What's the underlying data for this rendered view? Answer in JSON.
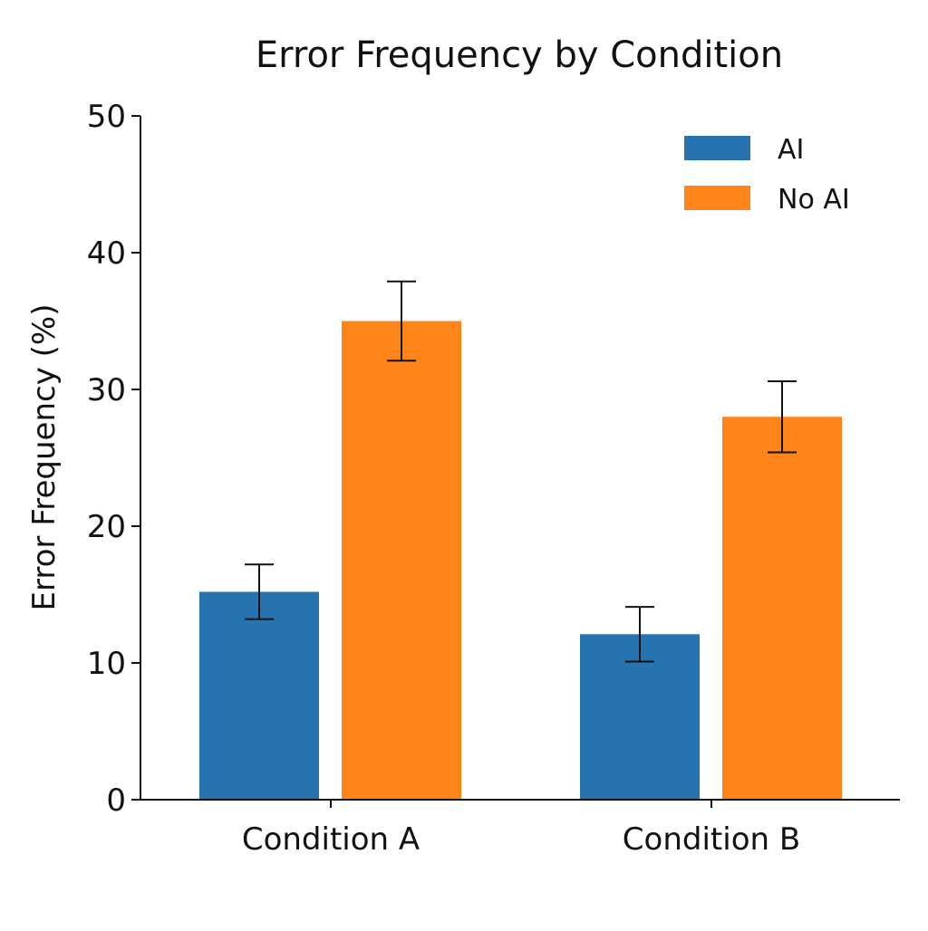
{
  "chart_data": {
    "type": "bar",
    "title": "Error Frequency by Condition",
    "xlabel": "",
    "ylabel": "Error Frequency (%)",
    "ylim": [
      0,
      50
    ],
    "yticks": [
      0,
      10,
      20,
      30,
      40,
      50
    ],
    "categories": [
      "Condition A",
      "Condition B"
    ],
    "series": [
      {
        "name": "AI",
        "color": "#2673b0",
        "values": [
          15.2,
          12.1
        ],
        "errors": [
          2.0,
          2.0
        ]
      },
      {
        "name": "No AI",
        "color": "#ff8419",
        "values": [
          35.0,
          28.0
        ],
        "errors": [
          2.9,
          2.6
        ]
      }
    ],
    "legend": "top-right",
    "grid": false
  }
}
